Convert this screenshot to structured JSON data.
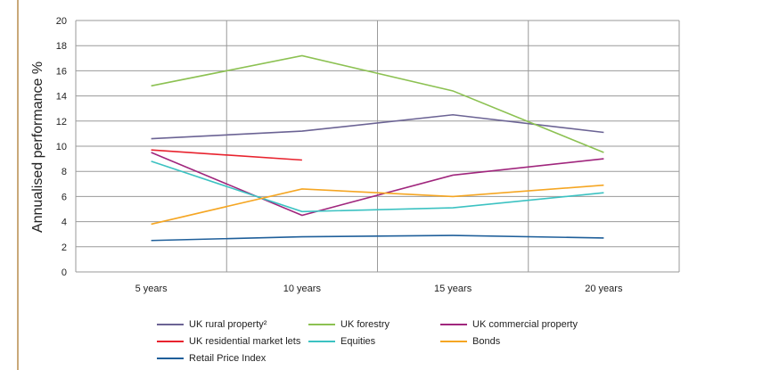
{
  "chart_data": {
    "type": "line",
    "title": "",
    "xlabel": "",
    "ylabel": "Annualised performance %",
    "categories": [
      "5 years",
      "10 years",
      "15 years",
      "20 years"
    ],
    "ylim": [
      0,
      20
    ],
    "yticks": [
      0,
      2,
      4,
      6,
      8,
      10,
      12,
      14,
      16,
      18,
      20
    ],
    "grid": "horizontal and vertical",
    "legend_position": "bottom",
    "series": [
      {
        "name": "UK rural property²",
        "color": "#6b6394",
        "values": [
          10.6,
          11.2,
          12.5,
          11.1
        ]
      },
      {
        "name": "UK forestry",
        "color": "#8cc152",
        "values": [
          14.8,
          17.2,
          14.4,
          9.5
        ]
      },
      {
        "name": "UK commercial property",
        "color": "#a0267d",
        "values": [
          9.5,
          4.5,
          7.7,
          9.0
        ]
      },
      {
        "name": "UK residential market lets",
        "color": "#e8232e",
        "values": [
          9.7,
          8.9,
          null,
          null
        ]
      },
      {
        "name": "Equities",
        "color": "#3cc2c2",
        "values": [
          8.8,
          4.8,
          5.1,
          6.3
        ]
      },
      {
        "name": "Bonds",
        "color": "#f5a623",
        "values": [
          3.8,
          6.6,
          6.0,
          6.9
        ]
      },
      {
        "name": "Retail Price Index",
        "color": "#1f5f9a",
        "values": [
          2.5,
          2.8,
          2.9,
          2.7
        ]
      }
    ]
  }
}
